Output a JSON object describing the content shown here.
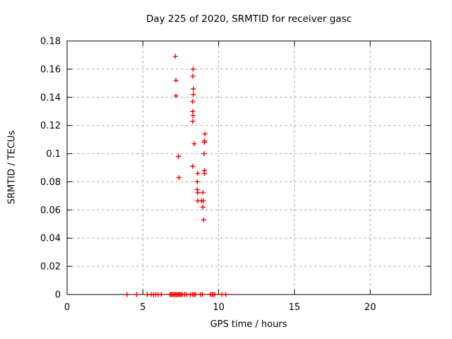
{
  "page": {
    "background": "#ffffff"
  },
  "chart_data": {
    "type": "scatter",
    "title": "Day 225 of 2020, SRMTID for receiver gasc",
    "xlabel": "GPS time / hours",
    "ylabel": "SRMTID / TECUs",
    "xlim": [
      0,
      24
    ],
    "ylim": [
      0,
      0.18
    ],
    "xticks": [
      0,
      5,
      10,
      15,
      20
    ],
    "xtick_labels": [
      "0",
      "5",
      "10",
      "15",
      "20"
    ],
    "yticks": [
      0,
      0.02,
      0.04,
      0.06,
      0.08,
      0.1,
      0.12,
      0.14,
      0.16,
      0.18
    ],
    "ytick_labels": [
      "0",
      "0.02",
      "0.04",
      "0.06",
      "0.08",
      "0.1",
      "0.12",
      "0.14",
      "0.16",
      "0.18"
    ],
    "grid": true,
    "legend": false,
    "marker": "plus",
    "marker_color": "#ff0000",
    "axis_color": "#000000",
    "grid_color": "#aaaaaa",
    "series": [
      {
        "points": [
          [
            7.14,
            0.169
          ],
          [
            8.31,
            0.16
          ],
          [
            8.29,
            0.155
          ],
          [
            7.18,
            0.152
          ],
          [
            8.33,
            0.146
          ],
          [
            8.33,
            0.142
          ],
          [
            7.18,
            0.141
          ],
          [
            8.28,
            0.137
          ],
          [
            8.29,
            0.13
          ],
          [
            8.31,
            0.127
          ],
          [
            8.28,
            0.123
          ],
          [
            9.09,
            0.114
          ],
          [
            9.06,
            0.109
          ],
          [
            9.07,
            0.108
          ],
          [
            8.39,
            0.107
          ],
          [
            9.04,
            0.1
          ],
          [
            7.35,
            0.098
          ],
          [
            8.28,
            0.091
          ],
          [
            9.06,
            0.088
          ],
          [
            9.07,
            0.086
          ],
          [
            8.62,
            0.086
          ],
          [
            7.38,
            0.083
          ],
          [
            8.59,
            0.08
          ],
          [
            8.59,
            0.0745
          ],
          [
            8.62,
            0.0723
          ],
          [
            8.96,
            0.0724
          ],
          [
            8.62,
            0.0665
          ],
          [
            8.87,
            0.0665
          ],
          [
            8.99,
            0.0665
          ],
          [
            8.96,
            0.062
          ],
          [
            9.01,
            0.053
          ],
          [
            3.95,
            0
          ],
          [
            4.59,
            0
          ],
          [
            5.29,
            0
          ],
          [
            5.55,
            0
          ],
          [
            5.7,
            0
          ],
          [
            5.85,
            0
          ],
          [
            6.0,
            0
          ],
          [
            6.22,
            0
          ],
          [
            6.79,
            0
          ],
          [
            6.87,
            0
          ],
          [
            6.95,
            0
          ],
          [
            7.03,
            0
          ],
          [
            7.11,
            0
          ],
          [
            7.19,
            0
          ],
          [
            7.27,
            0
          ],
          [
            7.35,
            0
          ],
          [
            7.43,
            0
          ],
          [
            7.51,
            0
          ],
          [
            7.59,
            0
          ],
          [
            7.75,
            0
          ],
          [
            7.88,
            0
          ],
          [
            8.15,
            0
          ],
          [
            8.28,
            0
          ],
          [
            8.38,
            0
          ],
          [
            8.47,
            0
          ],
          [
            8.8,
            0
          ],
          [
            8.93,
            0
          ],
          [
            9.46,
            0
          ],
          [
            9.56,
            0
          ],
          [
            9.64,
            0
          ],
          [
            9.75,
            0
          ],
          [
            10.2,
            0
          ],
          [
            10.47,
            0
          ]
        ]
      }
    ]
  }
}
